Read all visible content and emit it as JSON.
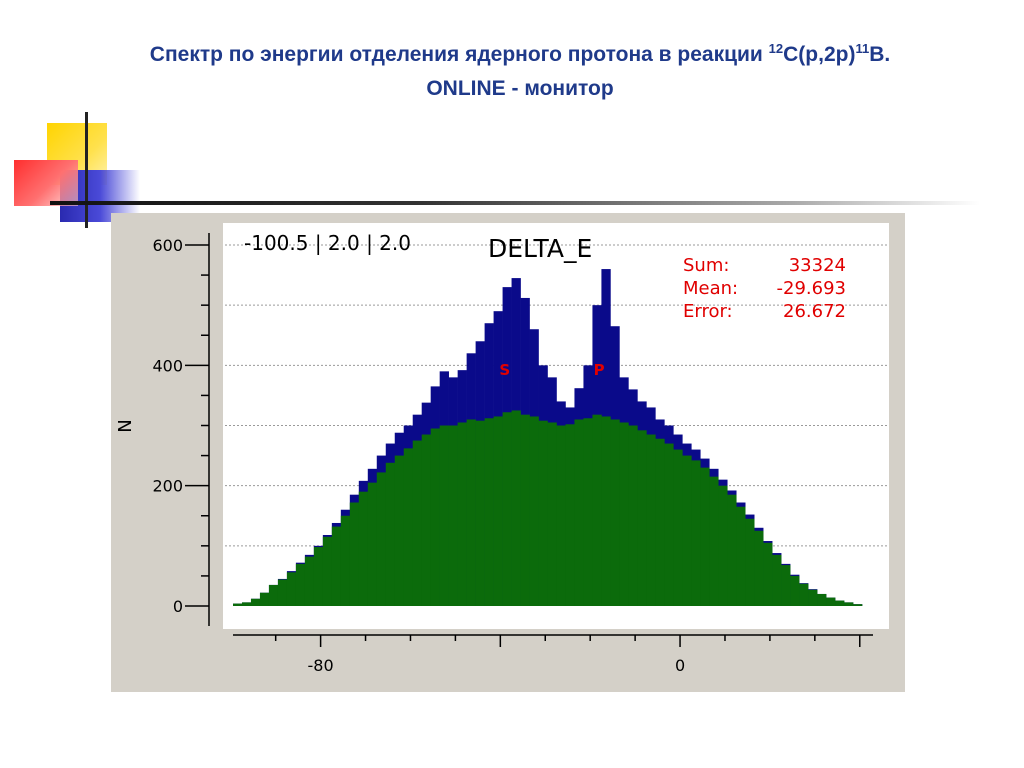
{
  "slide": {
    "title_line1_pre": "Спектр по энергии отделения ядерного протона в реакции ",
    "sup1": "12",
    "title_mid": "C(p,2p)",
    "sup2": "11",
    "title_end": "B.",
    "title_line2": "ONLINE - монитор"
  },
  "colors": {
    "title": "#1f3a8a",
    "total_series": "#0a0a8a",
    "background_series": "#0b6b0b",
    "stats_text": "#e00000",
    "peak_labels": "#e00000"
  },
  "chart_data": {
    "type": "bar",
    "title": "DELTA_E",
    "header": "-100.5 | 2.0 | 2.0",
    "ylabel": "N",
    "xlabel": "",
    "xlim": [
      -99.5,
      42.5
    ],
    "ylim": [
      0,
      600
    ],
    "y_ticks": [
      0,
      200,
      400,
      600
    ],
    "x_ticks": [
      -80,
      0
    ],
    "grid": true,
    "legend": "none",
    "stats": [
      {
        "label": "Sum:",
        "value": "33324"
      },
      {
        "label": "Mean:",
        "value": "-29.693"
      },
      {
        "label": "Error:",
        "value": "26.672"
      }
    ],
    "peak_labels": [
      {
        "text": "S",
        "x": -39
      },
      {
        "text": "P",
        "x": -18
      }
    ],
    "x": [
      -98.5,
      -96.5,
      -94.5,
      -92.5,
      -90.5,
      -88.5,
      -86.5,
      -84.5,
      -82.5,
      -80.5,
      -78.5,
      -76.5,
      -74.5,
      -72.5,
      -70.5,
      -68.5,
      -66.5,
      -64.5,
      -62.5,
      -60.5,
      -58.5,
      -56.5,
      -54.5,
      -52.5,
      -50.5,
      -48.5,
      -46.5,
      -44.5,
      -42.5,
      -40.5,
      -38.5,
      -36.5,
      -34.5,
      -32.5,
      -30.5,
      -28.5,
      -26.5,
      -24.5,
      -22.5,
      -20.5,
      -18.5,
      -16.5,
      -14.5,
      -12.5,
      -10.5,
      -8.5,
      -6.5,
      -4.5,
      -2.5,
      -0.5,
      1.5,
      3.5,
      5.5,
      7.5,
      9.5,
      11.5,
      13.5,
      15.5,
      17.5,
      19.5,
      21.5,
      23.5,
      25.5,
      27.5,
      29.5,
      31.5,
      33.5,
      35.5,
      37.5,
      39.5
    ],
    "series": [
      {
        "name": "",
        "values": [
          4,
          6,
          12,
          22,
          35,
          45,
          58,
          72,
          85,
          100,
          118,
          138,
          160,
          185,
          208,
          228,
          250,
          270,
          288,
          300,
          318,
          338,
          365,
          390,
          380,
          392,
          420,
          440,
          470,
          490,
          530,
          545,
          512,
          460,
          400,
          380,
          340,
          330,
          362,
          400,
          500,
          560,
          465,
          380,
          360,
          340,
          330,
          310,
          300,
          285,
          270,
          260,
          245,
          228,
          210,
          192,
          172,
          152,
          130,
          108,
          88,
          70,
          52,
          38,
          28,
          20,
          14,
          9,
          6,
          3
        ]
      },
      {
        "name": "",
        "values": [
          4,
          6,
          12,
          22,
          35,
          44,
          56,
          70,
          82,
          98,
          115,
          132,
          150,
          172,
          190,
          205,
          222,
          238,
          250,
          262,
          275,
          285,
          295,
          300,
          300,
          305,
          310,
          308,
          312,
          315,
          322,
          325,
          318,
          315,
          308,
          305,
          300,
          302,
          310,
          312,
          318,
          315,
          310,
          305,
          300,
          292,
          285,
          278,
          270,
          260,
          250,
          242,
          230,
          215,
          200,
          185,
          165,
          145,
          125,
          105,
          85,
          68,
          50,
          37,
          27,
          20,
          14,
          9,
          6,
          3
        ]
      }
    ]
  }
}
